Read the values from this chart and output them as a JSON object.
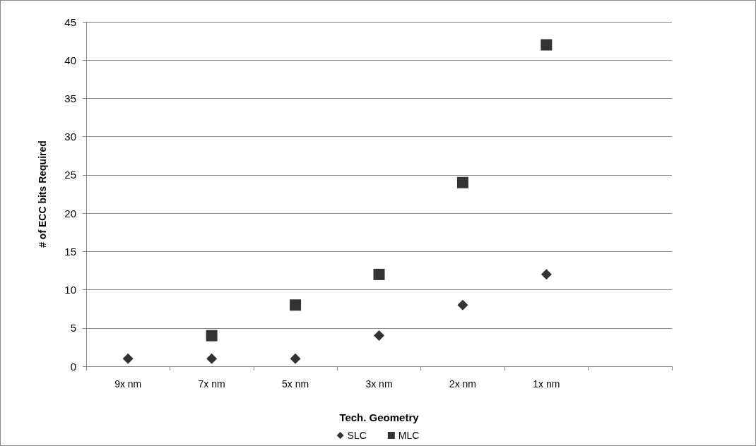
{
  "chart_data": {
    "type": "scatter",
    "xlabel": "Tech. Geometry",
    "ylabel": "# of ECC bits Required",
    "categories": [
      "9x nm",
      "7x nm",
      "5x nm",
      "3x nm",
      "2x nm",
      "1x nm",
      null
    ],
    "series": [
      {
        "name": "SLC",
        "color": "#000000",
        "marker": "diamond",
        "values": [
          1,
          1,
          1,
          4,
          8,
          12,
          null
        ]
      },
      {
        "name": "MLC",
        "color": "#000000",
        "marker": "square",
        "values": [
          null,
          4,
          8,
          12,
          24,
          42,
          null
        ]
      }
    ],
    "ylim": [
      0,
      45
    ],
    "yticks": [
      0,
      5,
      10,
      15,
      20,
      25,
      30,
      35,
      40,
      45
    ],
    "grid": "y",
    "legend": "bottom"
  }
}
